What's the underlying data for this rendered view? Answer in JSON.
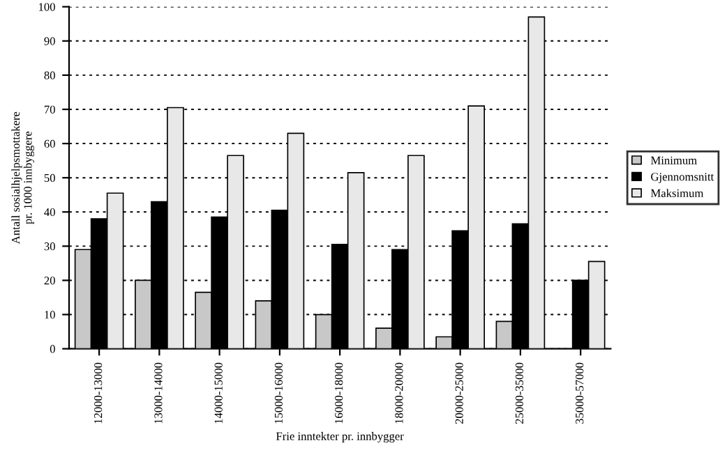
{
  "chart_data": {
    "type": "bar",
    "xlabel": "Frie inntekter pr. innbygger",
    "ylabel": "Antall sosialhjelpsmottakere\npr. 1000 innbyggere",
    "categories": [
      "12000-13000",
      "13000-14000",
      "14000-15000",
      "15000-16000",
      "16000-18000",
      "18000-20000",
      "20000-25000",
      "25000-35000",
      "35000-57000"
    ],
    "series": [
      {
        "name": "Minimum",
        "color": "#c8c8c8",
        "values": [
          29,
          20,
          16.5,
          14,
          10,
          6,
          3.5,
          8,
          null
        ]
      },
      {
        "name": "Gjennomsnitt",
        "color": "#000000",
        "values": [
          38,
          43,
          38.5,
          40.5,
          30.5,
          29,
          34.5,
          36.5,
          20
        ]
      },
      {
        "name": "Maksimum",
        "color": "#e8e8e8",
        "values": [
          45.5,
          70.5,
          56.5,
          63,
          51.5,
          56.5,
          71,
          97,
          25.5
        ]
      }
    ],
    "ylim": [
      0,
      100
    ],
    "yticks": [
      0,
      10,
      20,
      30,
      40,
      50,
      60,
      70,
      80,
      90,
      100
    ],
    "grid": "y",
    "legend": "right"
  }
}
